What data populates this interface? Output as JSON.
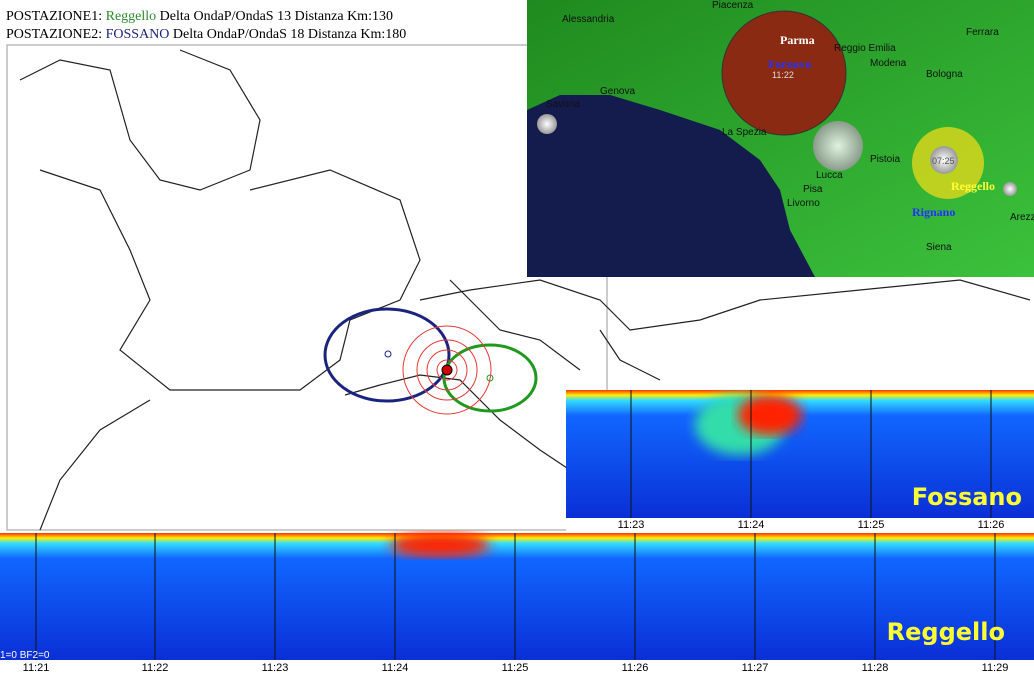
{
  "header": {
    "station1": {
      "prefix": "POSTAZIONE1:",
      "name": "Reggello",
      "detail": "Delta OndaP/OndaS 13 Distanza Km:130"
    },
    "station2": {
      "prefix": "POSTAZIONE2:",
      "name": "FOSSANO",
      "detail": "Delta OndaP/OndaS 18 Distanza Km:180"
    }
  },
  "inset_map": {
    "cities": [
      "Piacenza",
      "Alessandria",
      "Ferrara",
      "Reggio Emilia",
      "Modena",
      "Bologna",
      "Savona",
      "Genova",
      "La Spezia",
      "Pistoia",
      "Lucca",
      "Pisa",
      "Livorno",
      "Siena",
      "Arezzo"
    ],
    "markers": {
      "big": "Parma",
      "big_sub": "Fornovo",
      "big_time": "11:22",
      "small_time": "07:25",
      "station": "Reggello",
      "station_sub": "Rignano"
    }
  },
  "spectrogram_top": {
    "label": "Fossano",
    "ticks": [
      "11:23",
      "11:24",
      "11:25",
      "11:26"
    ]
  },
  "spectrogram_bottom": {
    "label": "Reggello",
    "corner": "1=0 BF2=0",
    "ticks": [
      "11:21",
      "11:22",
      "11:23",
      "11:24",
      "11:25",
      "11:26",
      "11:27",
      "11:28",
      "11:29"
    ]
  }
}
